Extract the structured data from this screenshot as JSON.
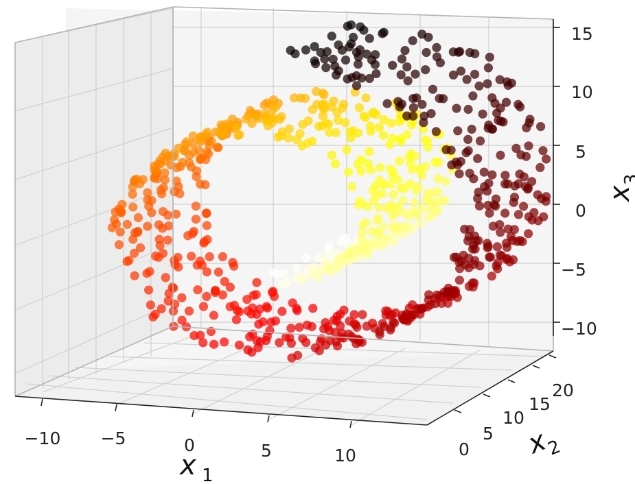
{
  "chart_data": {
    "type": "scatter",
    "projection": "3d",
    "title": "",
    "dataset_shape": "swiss roll",
    "colormap": "hot (black → red → orange → yellow → white, following position along the roll)",
    "point_count_approx": 1000,
    "axes": {
      "x": {
        "label": "x",
        "label_sub": "1",
        "ticks": [
          "−10",
          "−5",
          "0",
          "5",
          "10"
        ],
        "lim": [
          -11,
          13
        ]
      },
      "y": {
        "label": "x",
        "label_sub": "2",
        "ticks": [
          "0",
          "5",
          "10",
          "15",
          "20"
        ],
        "lim": [
          0,
          21
        ]
      },
      "z": {
        "label": "x",
        "label_sub": "3",
        "ticks": [
          "−10",
          "−5",
          "0",
          "5",
          "10",
          "15"
        ],
        "lim": [
          -12,
          15
        ]
      }
    },
    "grid": true,
    "legend": "none"
  }
}
